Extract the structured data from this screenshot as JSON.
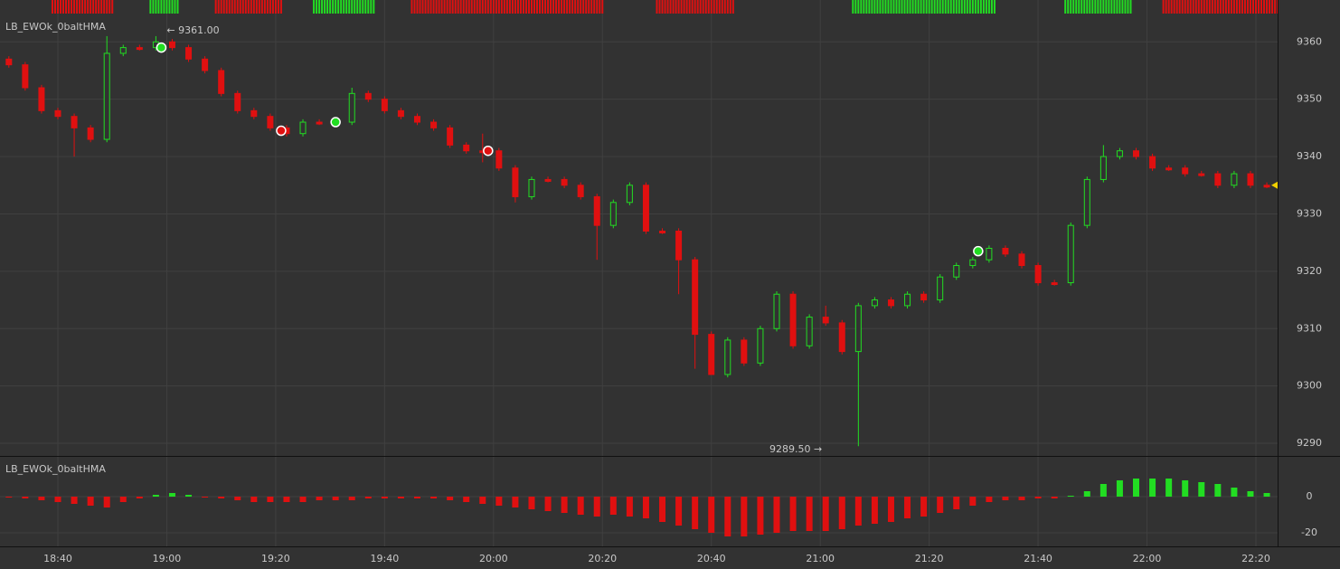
{
  "chart_data": [
    {
      "type": "candlestick",
      "title": "LB_EWOk_0baltHMA",
      "x": [
        "18:31",
        "18:34",
        "18:37",
        "18:40",
        "18:43",
        "18:46",
        "18:49",
        "18:52",
        "18:55",
        "18:58",
        "19:01",
        "19:04",
        "19:07",
        "19:10",
        "19:13",
        "19:16",
        "19:19",
        "19:22",
        "19:25",
        "19:28",
        "19:31",
        "19:34",
        "19:37",
        "19:40",
        "19:43",
        "19:46",
        "19:49",
        "19:52",
        "19:55",
        "19:58",
        "20:01",
        "20:04",
        "20:07",
        "20:10",
        "20:13",
        "20:16",
        "20:19",
        "20:22",
        "20:25",
        "20:28",
        "20:31",
        "20:34",
        "20:37",
        "20:40",
        "20:43",
        "20:46",
        "20:49",
        "20:52",
        "20:55",
        "20:58",
        "21:01",
        "21:04",
        "21:07",
        "21:10",
        "21:13",
        "21:16",
        "21:19",
        "21:22",
        "21:25",
        "21:28",
        "21:31",
        "21:34",
        "21:37",
        "21:40",
        "21:43",
        "21:46",
        "21:49",
        "21:52",
        "21:55",
        "21:58",
        "22:01",
        "22:04",
        "22:07",
        "22:10",
        "22:13",
        "22:16",
        "22:19",
        "22:22"
      ],
      "open": [
        9357,
        9356,
        9352,
        9348,
        9347,
        9345,
        9343,
        9358,
        9359,
        9359,
        9360,
        9359,
        9357,
        9355,
        9351,
        9348,
        9347,
        9345,
        9344,
        9346,
        9346,
        9346,
        9351,
        9350,
        9348,
        9347,
        9346,
        9345,
        9342,
        9341,
        9341,
        9338,
        9333,
        9336,
        9336,
        9335,
        9333,
        9328,
        9332,
        9335,
        9327,
        9327,
        9322,
        9309,
        9302,
        9308,
        9304,
        9310,
        9316,
        9307,
        9312,
        9311,
        9306,
        9314,
        9315,
        9314,
        9316,
        9315,
        9319,
        9321,
        9322,
        9324,
        9323,
        9321,
        9318,
        9318,
        9328,
        9336,
        9340,
        9341,
        9340,
        9338,
        9338,
        9337,
        9337,
        9335,
        9337,
        9335
      ],
      "high": [
        9357.5,
        9356.5,
        9352.5,
        9348.5,
        9347.5,
        9345.5,
        9361,
        9359.5,
        9359.5,
        9361,
        9360.5,
        9359.5,
        9357.5,
        9355.5,
        9351.5,
        9348.5,
        9347.5,
        9345.5,
        9346.5,
        9346.5,
        9346.5,
        9352,
        9351.5,
        9350.5,
        9348.5,
        9347.5,
        9346.5,
        9345.5,
        9342.5,
        9344,
        9341.5,
        9338.5,
        9336.5,
        9336.5,
        9336.5,
        9335.5,
        9333.5,
        9332.5,
        9335.5,
        9335.5,
        9327.5,
        9327.5,
        9322.5,
        9309.5,
        9308.5,
        9308.5,
        9310.5,
        9316.5,
        9316.5,
        9312.5,
        9314,
        9311.5,
        9314.5,
        9315.5,
        9315.5,
        9316.5,
        9316.5,
        9319.5,
        9321.5,
        9322.5,
        9324.5,
        9324.5,
        9323.5,
        9321.5,
        9318.5,
        9328.5,
        9336.5,
        9342,
        9341.5,
        9341.5,
        9340.5,
        9338.5,
        9338.5,
        9337.5,
        9337.5,
        9337.5,
        9337.5,
        9335.5
      ],
      "low": [
        9355.5,
        9351.5,
        9347.5,
        9346.5,
        9340,
        9342.5,
        9342.5,
        9357.5,
        9358.5,
        9358.5,
        9358.5,
        9356.5,
        9354.5,
        9350.5,
        9347.5,
        9346.5,
        9344.5,
        9343.5,
        9343.5,
        9345.5,
        9345.5,
        9345.5,
        9349.5,
        9347.5,
        9346.5,
        9345.5,
        9344.5,
        9341.5,
        9340.5,
        9339,
        9337.5,
        9332,
        9332.5,
        9335.5,
        9334.5,
        9332.5,
        9322,
        9327.5,
        9331.5,
        9326.5,
        9326.5,
        9316,
        9303,
        9302,
        9301.5,
        9303.5,
        9303.5,
        9309.5,
        9306.5,
        9306.5,
        9310.5,
        9305.5,
        9289.5,
        9313.5,
        9313.5,
        9313.5,
        9314.5,
        9314.5,
        9318.5,
        9320.5,
        9321.5,
        9322.5,
        9320.5,
        9317.5,
        9317.5,
        9317.5,
        9327.5,
        9335.5,
        9339.5,
        9339.5,
        9337.5,
        9337.5,
        9336.5,
        9336.5,
        9334.5,
        9334.5,
        9334.5,
        9334.5
      ],
      "close": [
        9356,
        9352,
        9348,
        9347,
        9345,
        9343,
        9358,
        9359,
        9359,
        9360,
        9359,
        9357,
        9355,
        9351,
        9348,
        9347,
        9345,
        9344,
        9346,
        9346,
        9346,
        9351,
        9350,
        9348,
        9347,
        9346,
        9345,
        9342,
        9341,
        9341,
        9338,
        9333,
        9336,
        9336,
        9335,
        9333,
        9328,
        9332,
        9335,
        9327,
        9327,
        9322,
        9309,
        9302,
        9308,
        9304,
        9310,
        9316,
        9307,
        9312,
        9311,
        9306,
        9314,
        9315,
        9314,
        9316,
        9315,
        9319,
        9321,
        9322,
        9324,
        9323,
        9321,
        9318,
        9318,
        9328,
        9336,
        9340,
        9341,
        9340,
        9338,
        9338,
        9337,
        9337,
        9335,
        9337,
        9335,
        9335
      ],
      "up_color": "#22dd22",
      "down_color": "#e01010",
      "signals": [
        {
          "x": "18:59",
          "value": 9359,
          "color": "#22dd22"
        },
        {
          "x": "19:21",
          "value": 9344.5,
          "color": "#e01010"
        },
        {
          "x": "19:31",
          "value": 9346,
          "color": "#22dd22"
        },
        {
          "x": "19:59",
          "value": 9341,
          "color": "#e01010"
        },
        {
          "x": "21:29",
          "value": 9323.5,
          "color": "#22dd22"
        }
      ],
      "annotations": [
        {
          "text": "← 9361.00",
          "x": "18:58",
          "value": 9361
        },
        {
          "text": "9289.50 →",
          "x": "21:01",
          "value": 9289.5
        }
      ],
      "trend_strip": [
        {
          "start": "18:39",
          "end": "18:50",
          "color": "#e01010"
        },
        {
          "start": "18:57",
          "end": "19:02",
          "color": "#22dd22"
        },
        {
          "start": "19:09",
          "end": "19:21",
          "color": "#e01010"
        },
        {
          "start": "19:27",
          "end": "19:38",
          "color": "#22dd22"
        },
        {
          "start": "19:45",
          "end": "20:20",
          "color": "#e01010"
        },
        {
          "start": "20:30",
          "end": "20:44",
          "color": "#e01010"
        },
        {
          "start": "21:06",
          "end": "21:32",
          "color": "#22dd22"
        },
        {
          "start": "21:45",
          "end": "21:57",
          "color": "#22dd22"
        },
        {
          "start": "22:03",
          "end": "22:24",
          "color": "#e01010"
        }
      ],
      "ylim": [
        9287.8,
        9367.3
      ],
      "yticks": [
        9290,
        9300,
        9310,
        9320,
        9330,
        9340,
        9350,
        9360
      ],
      "xticks": [
        "18:40",
        "19:00",
        "19:20",
        "19:40",
        "20:00",
        "20:20",
        "20:40",
        "21:00",
        "21:20",
        "21:40",
        "22:00",
        "22:20"
      ],
      "grid": true,
      "last_price_color": "#f0d000"
    },
    {
      "type": "bar",
      "title": "LB_EWOk_0baltHMA",
      "values": [
        -0.5,
        -1,
        -2,
        -3,
        -4,
        -5,
        -6,
        -3,
        -1,
        1,
        2,
        1,
        0,
        -1,
        -2,
        -3,
        -3,
        -3,
        -3,
        -2,
        -2,
        -2,
        -1,
        -1,
        -1,
        -1,
        -1,
        -2,
        -3,
        -4,
        -5,
        -6,
        -7,
        -8,
        -9,
        -10,
        -11,
        -10,
        -11,
        -12,
        -14,
        -16,
        -18,
        -20,
        -22,
        -22,
        -21,
        -20,
        -19,
        -19,
        -19,
        -18,
        -16,
        -15,
        -14,
        -12,
        -11,
        -9,
        -7,
        -5,
        -3,
        -2,
        -2,
        -1,
        -1,
        0.5,
        3,
        7,
        9,
        10,
        10,
        10,
        9,
        8,
        7,
        5,
        3,
        2
      ],
      "up_color": "#22dd22",
      "down_color": "#e01010",
      "ylim": [
        -27.5,
        22
      ],
      "yticks": [
        -20,
        0
      ],
      "grid": true
    }
  ]
}
